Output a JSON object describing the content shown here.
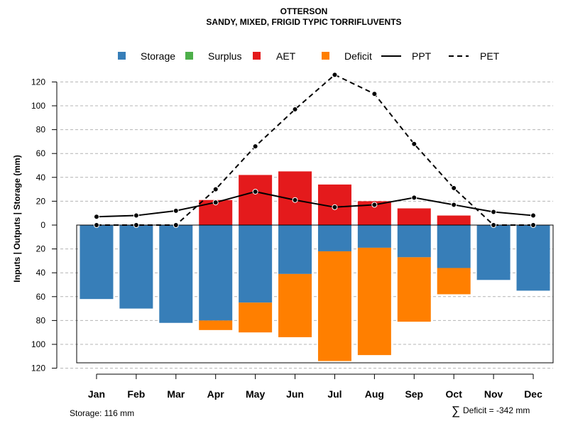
{
  "chart_data": {
    "type": "bar",
    "title": "OTTERSON",
    "subtitle": "SANDY, MIXED, FRIGID TYPIC TORRIFLUVENTS",
    "ylabel": "Inputs | Outputs | Storage    (mm)",
    "categories": [
      "Jan",
      "Feb",
      "Mar",
      "Apr",
      "May",
      "Jun",
      "Jul",
      "Aug",
      "Sep",
      "Oct",
      "Nov",
      "Dec"
    ],
    "ylim": [
      -120,
      130
    ],
    "yticks": [
      120,
      100,
      80,
      60,
      40,
      20,
      0,
      20,
      40,
      60,
      80,
      100,
      120
    ],
    "ytick_values": [
      120,
      100,
      80,
      60,
      40,
      20,
      0,
      -20,
      -40,
      -60,
      -80,
      -100,
      -120
    ],
    "legend": [
      {
        "label": "Storage",
        "kind": "box",
        "color": "#377eb8"
      },
      {
        "label": "Surplus",
        "kind": "box",
        "color": "#4daf4a"
      },
      {
        "label": "AET",
        "kind": "box",
        "color": "#e41a1c"
      },
      {
        "label": "Deficit",
        "kind": "box",
        "color": "#ff7f00"
      },
      {
        "label": "PPT",
        "kind": "solid",
        "color": "#000000"
      },
      {
        "label": "PET",
        "kind": "dashed",
        "color": "#000000"
      }
    ],
    "series": [
      {
        "name": "AET",
        "color": "#e41a1c",
        "values": [
          0,
          0,
          0,
          21,
          42,
          45,
          34,
          20,
          14,
          8,
          0,
          0
        ]
      },
      {
        "name": "Surplus",
        "color": "#4daf4a",
        "values": [
          0,
          0,
          0,
          0,
          0,
          0,
          0,
          0,
          0,
          0,
          0,
          0
        ]
      },
      {
        "name": "Storage",
        "color": "#377eb8",
        "values": [
          62,
          70,
          82,
          80,
          65,
          41,
          22,
          19,
          27,
          36,
          46,
          55
        ]
      },
      {
        "name": "Deficit",
        "color": "#ff7f00",
        "values": [
          0,
          0,
          0,
          8,
          25,
          53,
          92,
          90,
          54,
          22,
          0,
          0
        ]
      },
      {
        "name": "PPT",
        "color": "#000000",
        "values": [
          7,
          8,
          12,
          19,
          28,
          21,
          15,
          17,
          23,
          17,
          11,
          8
        ]
      },
      {
        "name": "PET",
        "color": "#000000",
        "values": [
          0,
          0,
          0,
          30,
          66,
          97,
          126,
          110,
          68,
          31,
          0,
          0
        ]
      }
    ],
    "storage_capacity": 116,
    "footer_left": "Storage: 116 mm",
    "footer_right": "Deficit = -342 mm",
    "footer_right_symbol": "∑"
  }
}
